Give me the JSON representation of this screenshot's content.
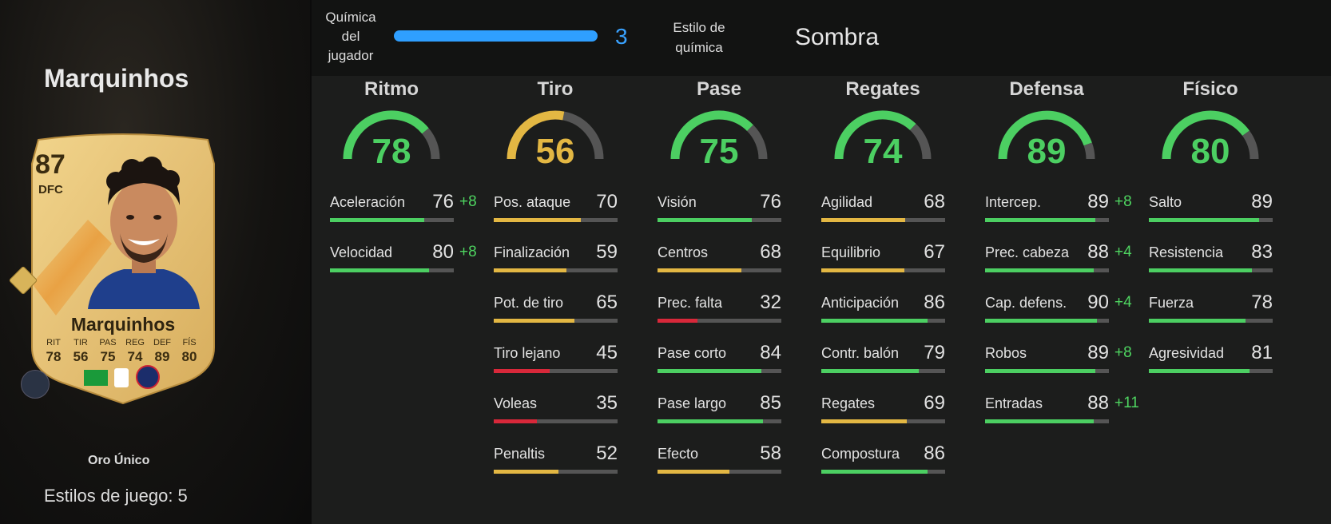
{
  "player": {
    "name": "Marquinhos",
    "card_type": "Oro Único",
    "playstyles": "Estilos de juego: 5"
  },
  "card": {
    "overall": "87",
    "position": "DFC",
    "name": "Marquinhos",
    "stats": [
      {
        "label": "RIT",
        "value": "78"
      },
      {
        "label": "TIR",
        "value": "56"
      },
      {
        "label": "PAS",
        "value": "75"
      },
      {
        "label": "REG",
        "value": "74"
      },
      {
        "label": "DEF",
        "value": "89"
      },
      {
        "label": "FÍS",
        "value": "80"
      }
    ]
  },
  "chemistry": {
    "label": "Química del jugador",
    "value": "3",
    "style_label": "Estilo de química",
    "style_value": "Sombra"
  },
  "colors": {
    "green": "#4ccf62",
    "yellow": "#e3b743",
    "red": "#d8283a",
    "blue": "#2f9fff"
  },
  "categories": [
    {
      "title": "Ritmo",
      "value": 78,
      "color": "green",
      "stats": [
        {
          "name": "Aceleración",
          "value": 76,
          "bonus": "+8",
          "color": "green"
        },
        {
          "name": "Velocidad",
          "value": 80,
          "bonus": "+8",
          "color": "green"
        }
      ]
    },
    {
      "title": "Tiro",
      "value": 56,
      "color": "yellow",
      "stats": [
        {
          "name": "Pos. ataque",
          "value": 70,
          "bonus": "",
          "color": "yellow"
        },
        {
          "name": "Finalización",
          "value": 59,
          "bonus": "",
          "color": "yellow"
        },
        {
          "name": "Pot. de tiro",
          "value": 65,
          "bonus": "",
          "color": "yellow"
        },
        {
          "name": "Tiro lejano",
          "value": 45,
          "bonus": "",
          "color": "red"
        },
        {
          "name": "Voleas",
          "value": 35,
          "bonus": "",
          "color": "red"
        },
        {
          "name": "Penaltis",
          "value": 52,
          "bonus": "",
          "color": "yellow"
        }
      ]
    },
    {
      "title": "Pase",
      "value": 75,
      "color": "green",
      "stats": [
        {
          "name": "Visión",
          "value": 76,
          "bonus": "",
          "color": "green"
        },
        {
          "name": "Centros",
          "value": 68,
          "bonus": "",
          "color": "yellow"
        },
        {
          "name": "Prec. falta",
          "value": 32,
          "bonus": "",
          "color": "red"
        },
        {
          "name": "Pase corto",
          "value": 84,
          "bonus": "",
          "color": "green"
        },
        {
          "name": "Pase largo",
          "value": 85,
          "bonus": "",
          "color": "green"
        },
        {
          "name": "Efecto",
          "value": 58,
          "bonus": "",
          "color": "yellow"
        }
      ]
    },
    {
      "title": "Regates",
      "value": 74,
      "color": "green",
      "stats": [
        {
          "name": "Agilidad",
          "value": 68,
          "bonus": "",
          "color": "yellow"
        },
        {
          "name": "Equilibrio",
          "value": 67,
          "bonus": "",
          "color": "yellow"
        },
        {
          "name": "Anticipación",
          "value": 86,
          "bonus": "",
          "color": "green"
        },
        {
          "name": "Contr. balón",
          "value": 79,
          "bonus": "",
          "color": "green"
        },
        {
          "name": "Regates",
          "value": 69,
          "bonus": "",
          "color": "yellow"
        },
        {
          "name": "Compostura",
          "value": 86,
          "bonus": "",
          "color": "green"
        }
      ]
    },
    {
      "title": "Defensa",
      "value": 89,
      "color": "green",
      "stats": [
        {
          "name": "Intercep.",
          "value": 89,
          "bonus": "+8",
          "color": "green"
        },
        {
          "name": "Prec. cabeza",
          "value": 88,
          "bonus": "+4",
          "color": "green"
        },
        {
          "name": "Cap. defens.",
          "value": 90,
          "bonus": "+4",
          "color": "green"
        },
        {
          "name": "Robos",
          "value": 89,
          "bonus": "+8",
          "color": "green"
        },
        {
          "name": "Entradas",
          "value": 88,
          "bonus": "+11",
          "color": "green"
        }
      ]
    },
    {
      "title": "Físico",
      "value": 80,
      "color": "green",
      "stats": [
        {
          "name": "Salto",
          "value": 89,
          "bonus": "",
          "color": "green"
        },
        {
          "name": "Resistencia",
          "value": 83,
          "bonus": "",
          "color": "green"
        },
        {
          "name": "Fuerza",
          "value": 78,
          "bonus": "",
          "color": "green"
        },
        {
          "name": "Agresividad",
          "value": 81,
          "bonus": "",
          "color": "green"
        }
      ]
    }
  ]
}
